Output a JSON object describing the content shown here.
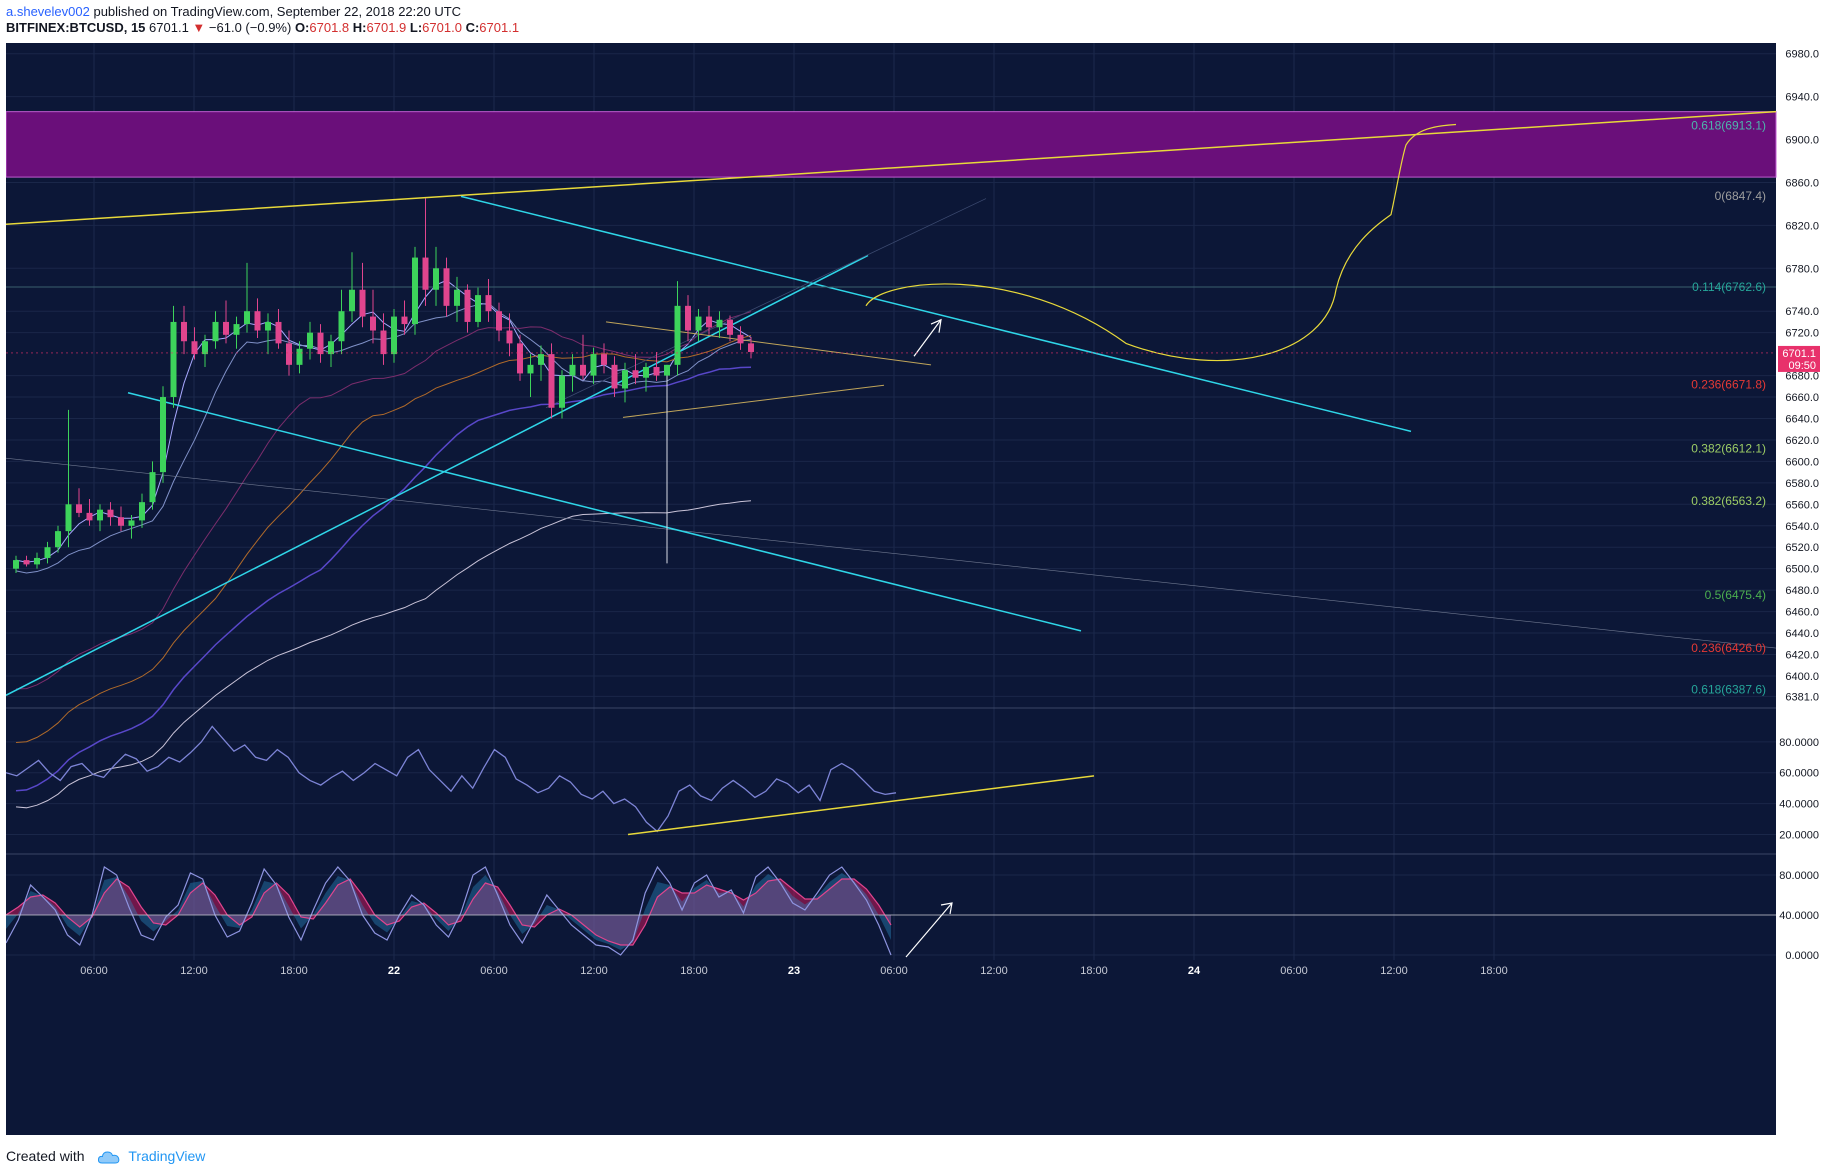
{
  "header": {
    "author": "a.shevelev002",
    "published": "published on TradingView.com, September 22, 2018 22:20 UTC",
    "symbol": "BITFINEX:BTCUSD, 15",
    "last": "6701.1",
    "arrow": "▼",
    "change": "−61.0 (−0.9%)",
    "o_label": "O:",
    "o_value": "6701.8",
    "h_label": "H:",
    "h_value": "6701.9",
    "l_label": "L:",
    "l_value": "6701.0",
    "c_label": "C:",
    "c_value": "6701.1"
  },
  "footer": {
    "created_with": "Created with",
    "brand": "TradingView"
  },
  "colors": {
    "background": "#0c1737",
    "panel_background": "#0a1534",
    "up": "#3dd35b",
    "down": "#e0458e",
    "trend_cyan": "#2fd6e8",
    "trend_yellow": "#e8d93a",
    "zone_purple": "#6a0f7a",
    "price_badge": "#e8316b",
    "rsi_line": "#7d84d6"
  },
  "chart_data": [
    {
      "type": "candlestick",
      "symbol": "BITFINEX:BTCUSD",
      "interval": "15",
      "x_ticks": [
        "06:00",
        "12:00",
        "18:00",
        "22",
        "06:00",
        "12:00",
        "18:00",
        "23",
        "06:00",
        "12:00",
        "18:00",
        "24",
        "06:00",
        "12:00",
        "18:00"
      ],
      "y_ticks": [
        "6980.0",
        "6940.0",
        "6900.0",
        "6860.0",
        "6820.0",
        "6780.0",
        "6740.0",
        "6720.0",
        "6680.0",
        "6660.0",
        "6640.0",
        "6620.0",
        "6600.0",
        "6580.0",
        "6560.0",
        "6540.0",
        "6520.0",
        "6500.0",
        "6480.0",
        "6460.0",
        "6440.0",
        "6420.0",
        "6400.0",
        "6381.0"
      ],
      "ylim": [
        6372,
        6990
      ],
      "current_price": "6701.1",
      "countdown": "09:50",
      "fib_levels": [
        {
          "label": "0.618(6913.1)",
          "value": 6913.1,
          "color": "#4db6ac"
        },
        {
          "label": "0(6847.4)",
          "value": 6847.4,
          "color": "#9e9e9e"
        },
        {
          "label": "0.114(6762.6)",
          "value": 6762.6,
          "color": "#26a69a"
        },
        {
          "label": "0.236(6671.8)",
          "value": 6671.8,
          "color": "#e53935"
        },
        {
          "label": "0.382(6612.1)",
          "value": 6612.1,
          "color": "#9ccc65"
        },
        {
          "label": "0.382(6563.2)",
          "value": 6563.2,
          "color": "#9ccc65"
        },
        {
          "label": "0.5(6475.4)",
          "value": 6475.4,
          "color": "#4caf50"
        },
        {
          "label": "0.236(6426.0)",
          "value": 6426.0,
          "color": "#e53935"
        },
        {
          "label": "0.618(6387.6)",
          "value": 6387.6,
          "color": "#26a69a"
        }
      ],
      "resistance_zone": [
        6865,
        6926
      ],
      "candles": [
        [
          6500,
          6512,
          6496,
          6508
        ],
        [
          6508,
          6512,
          6502,
          6504
        ],
        [
          6504,
          6515,
          6500,
          6510
        ],
        [
          6510,
          6525,
          6505,
          6520
        ],
        [
          6520,
          6540,
          6515,
          6535
        ],
        [
          6535,
          6648,
          6520,
          6560
        ],
        [
          6560,
          6575,
          6548,
          6552
        ],
        [
          6552,
          6565,
          6540,
          6545
        ],
        [
          6545,
          6560,
          6535,
          6555
        ],
        [
          6555,
          6562,
          6540,
          6548
        ],
        [
          6548,
          6558,
          6535,
          6540
        ],
        [
          6540,
          6550,
          6528,
          6545
        ],
        [
          6545,
          6570,
          6538,
          6562
        ],
        [
          6562,
          6600,
          6555,
          6590
        ],
        [
          6590,
          6670,
          6580,
          6660
        ],
        [
          6660,
          6745,
          6650,
          6730
        ],
        [
          6730,
          6745,
          6700,
          6712
        ],
        [
          6712,
          6725,
          6695,
          6700
        ],
        [
          6700,
          6718,
          6688,
          6712
        ],
        [
          6712,
          6740,
          6705,
          6730
        ],
        [
          6730,
          6750,
          6710,
          6718
        ],
        [
          6718,
          6735,
          6705,
          6728
        ],
        [
          6728,
          6785,
          6720,
          6740
        ],
        [
          6740,
          6752,
          6715,
          6722
        ],
        [
          6722,
          6738,
          6700,
          6730
        ],
        [
          6730,
          6742,
          6705,
          6710
        ],
        [
          6710,
          6722,
          6680,
          6690
        ],
        [
          6690,
          6712,
          6682,
          6705
        ],
        [
          6705,
          6730,
          6695,
          6720
        ],
        [
          6720,
          6728,
          6692,
          6700
        ],
        [
          6700,
          6718,
          6688,
          6712
        ],
        [
          6712,
          6760,
          6700,
          6740
        ],
        [
          6740,
          6795,
          6730,
          6760
        ],
        [
          6760,
          6785,
          6725,
          6735
        ],
        [
          6735,
          6760,
          6710,
          6722
        ],
        [
          6722,
          6738,
          6690,
          6700
        ],
        [
          6700,
          6742,
          6692,
          6735
        ],
        [
          6735,
          6750,
          6718,
          6728
        ],
        [
          6728,
          6800,
          6718,
          6790
        ],
        [
          6790,
          6845,
          6745,
          6760
        ],
        [
          6760,
          6800,
          6745,
          6780
        ],
        [
          6780,
          6790,
          6735,
          6745
        ],
        [
          6745,
          6772,
          6730,
          6760
        ],
        [
          6760,
          6765,
          6720,
          6730
        ],
        [
          6730,
          6762,
          6725,
          6755
        ],
        [
          6755,
          6770,
          6730,
          6740
        ],
        [
          6740,
          6748,
          6712,
          6722
        ],
        [
          6722,
          6738,
          6698,
          6710
        ],
        [
          6710,
          6718,
          6675,
          6682
        ],
        [
          6682,
          6700,
          6660,
          6690
        ],
        [
          6690,
          6708,
          6675,
          6700
        ],
        [
          6700,
          6710,
          6640,
          6650
        ],
        [
          6650,
          6685,
          6640,
          6680
        ],
        [
          6680,
          6700,
          6665,
          6690
        ],
        [
          6690,
          6718,
          6676,
          6680
        ],
        [
          6680,
          6706,
          6672,
          6700
        ],
        [
          6700,
          6710,
          6682,
          6690
        ],
        [
          6690,
          6698,
          6660,
          6668
        ],
        [
          6668,
          6692,
          6655,
          6685
        ],
        [
          6685,
          6700,
          6672,
          6678
        ],
        [
          6678,
          6692,
          6665,
          6688
        ],
        [
          6688,
          6702,
          6675,
          6680
        ],
        [
          6680,
          6690,
          6505,
          6690
        ],
        [
          6690,
          6768,
          6680,
          6745
        ],
        [
          6745,
          6755,
          6712,
          6722
        ],
        [
          6722,
          6742,
          6712,
          6735
        ],
        [
          6735,
          6745,
          6718,
          6725
        ],
        [
          6725,
          6740,
          6715,
          6732
        ],
        [
          6732,
          6736,
          6712,
          6718
        ],
        [
          6718,
          6726,
          6704,
          6710
        ],
        [
          6710,
          6716,
          6696,
          6702
        ]
      ],
      "indicators": [
        "moving averages (several)",
        "fibonacci retracements",
        "trend lines",
        "projection path"
      ]
    },
    {
      "type": "line",
      "name": "",
      "y_ticks": [
        "80.0000",
        "60.0000",
        "40.0000",
        "20.0000"
      ],
      "ylim": [
        8,
        100
      ],
      "values": [
        60,
        58,
        63,
        68,
        60,
        55,
        64,
        66,
        59,
        57,
        65,
        72,
        69,
        61,
        64,
        70,
        67,
        73,
        80,
        90,
        82,
        74,
        78,
        70,
        68,
        75,
        70,
        60,
        55,
        52,
        57,
        61,
        55,
        60,
        66,
        62,
        58,
        70,
        75,
        62,
        55,
        48,
        58,
        50,
        63,
        75,
        70,
        56,
        52,
        47,
        50,
        58,
        54,
        46,
        43,
        48,
        40,
        43,
        38,
        28,
        22,
        32,
        48,
        52,
        45,
        42,
        50,
        55,
        50,
        44,
        48,
        56,
        53,
        47,
        52,
        42,
        62,
        66,
        62,
        55,
        48,
        46,
        47
      ],
      "trendline": "rising from 20 to 58"
    },
    {
      "type": "area",
      "name": "",
      "y_ticks": [
        "80.0000",
        "40.0000",
        "0.0000"
      ],
      "ylim": [
        -5,
        100
      ],
      "k_values": [
        12,
        35,
        70,
        58,
        45,
        20,
        10,
        40,
        88,
        80,
        48,
        20,
        15,
        38,
        50,
        82,
        76,
        40,
        18,
        24,
        52,
        86,
        70,
        38,
        15,
        45,
        72,
        88,
        74,
        40,
        22,
        15,
        40,
        60,
        50,
        30,
        18,
        42,
        80,
        88,
        60,
        30,
        12,
        35,
        60,
        45,
        30,
        20,
        10,
        8,
        0,
        15,
        62,
        88,
        72,
        45,
        72,
        80,
        58,
        65,
        42,
        78,
        88,
        72,
        52,
        45,
        62,
        80,
        88,
        72,
        55,
        30,
        0
      ],
      "d_values": [
        40,
        48,
        58,
        60,
        52,
        38,
        28,
        38,
        62,
        76,
        68,
        48,
        32,
        30,
        40,
        62,
        72,
        60,
        40,
        30,
        38,
        62,
        72,
        60,
        38,
        36,
        52,
        70,
        76,
        60,
        40,
        30,
        34,
        48,
        52,
        42,
        30,
        34,
        56,
        72,
        68,
        50,
        30,
        28,
        40,
        46,
        40,
        30,
        20,
        14,
        10,
        10,
        30,
        58,
        68,
        62,
        62,
        70,
        66,
        62,
        55,
        62,
        74,
        76,
        66,
        56,
        56,
        66,
        76,
        76,
        66,
        50,
        30
      ]
    }
  ],
  "pane_labels": {
    "fib_1": "0.618(6913.1)",
    "fib_2": "0(6847.4)",
    "fib_3": "0.114(6762.6)",
    "fib_4": "0.236(6671.8)",
    "fib_5": "0.382(6612.1)",
    "fib_6": "0.382(6563.2)",
    "fib_7": "0.5(6475.4)",
    "fib_8": "0.236(6426.0)",
    "fib_9": "0.618(6387.6)"
  }
}
